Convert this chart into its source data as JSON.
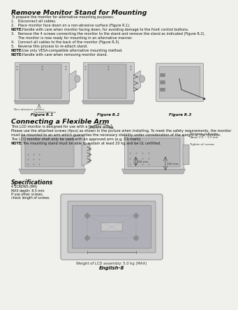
{
  "bg_color": "#f0f0ec",
  "title1": "Remove Monitor Stand for Mounting",
  "title2": "Connecting a Flexible Arm",
  "body1": [
    "To prepare the monitor for alternative mounting purposes:",
    "1.   Disconnect all cables.",
    "2.   Place monitor face down on a non-abrasive surface (Figure R.1).",
    "NOTE:   Handle with care when monitor facing down, for avoiding damage to the front control buttons.",
    "3.   Remove the 4 screws connecting the monitor to the stand and remove the stand as indicated (Figure R.2).",
    "      The monitor is now ready for mounting in an alternative manner.",
    "4.   Connect all cables to the back of the monitor (Figure R.3).",
    "5.   Reverse this process to re-attach stand.",
    "NOTE:   Use only VESA-compatible alternative mounting method.",
    "NOTE:   Handle with care when removing monitor stand."
  ],
  "fig_labels": [
    "Figure R.1",
    "Figure R.2",
    "Figure R.3"
  ],
  "body2": [
    "This LCD monitor is designed for use with a flexible arm.",
    "Please use the attached screws (4pcs) as shown in the picture when installing. To meet the safety requirements, the monitor",
    "must be mounted to an arm which guaranties the necessary stability under consideration of the weight of the monitor.",
    "The LCD monitor shall only be used with an approved arm (e.g. GS mark).",
    "NOTE:   The mounting stand must be able to sustain at least 20 kg and be UL certified."
  ],
  "spec_title": "Specifications",
  "spec_lines": [
    "4 SCREWS (M4)",
    "MAX depth: 8.5 mm",
    "If use other screws,",
    "check length of screws."
  ],
  "replace_screws": "Replace screws",
  "right_annot": [
    "Thickness of Bracket",
    "(Area) 2.0 ~ 3.2 mm",
    "Tighten all screws"
  ],
  "dim_labels": [
    "100 mm",
    "100 mm"
  ],
  "bottom1": "Weight of LCD assembly: 5.0 kg (MAX)",
  "bottom2": "English-8",
  "non_abrasive": "Non-abrasive surface",
  "control_btn": "Control buttons"
}
